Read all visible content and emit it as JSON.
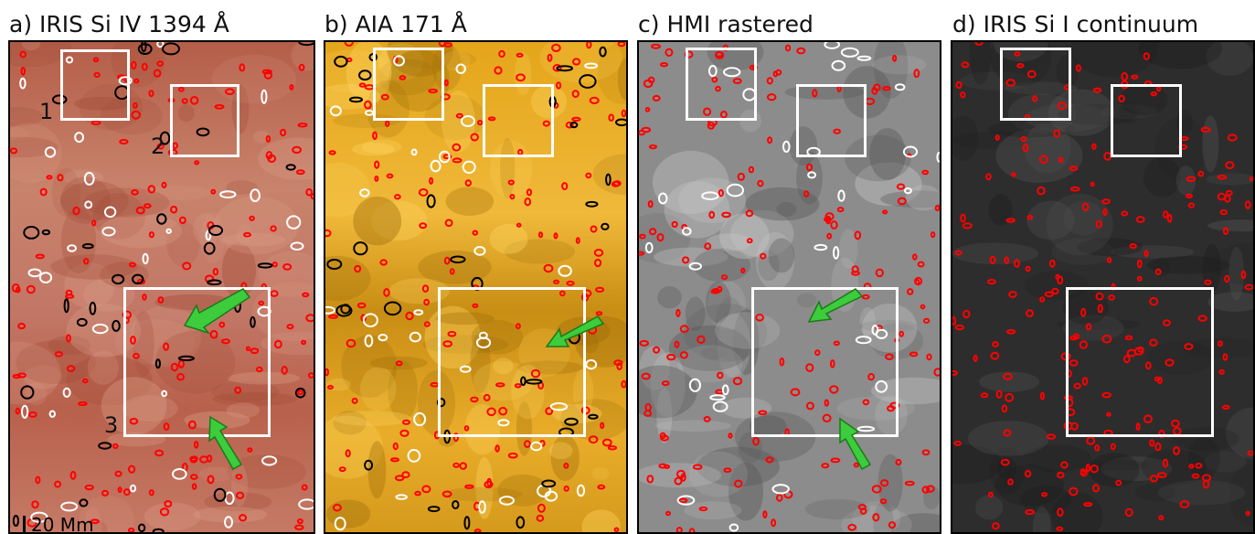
{
  "panels": [
    {
      "id": "a",
      "title": "a) IRIS Si IV 1394 Å"
    },
    {
      "id": "b",
      "title": "b) AIA 171 Å"
    },
    {
      "id": "c",
      "title": "c) HMI rastered"
    },
    {
      "id": "d",
      "title": "d) IRIS Si I continuum"
    }
  ],
  "region_labels": [
    "1",
    "2",
    "3"
  ],
  "scale_bar": "20 Mm",
  "colors": {
    "contour_red": "#ff0000",
    "contour_white": "#ffffff",
    "contour_black": "#000000",
    "arrow_green": "#3ccc3c",
    "box": "#ffffff"
  }
}
